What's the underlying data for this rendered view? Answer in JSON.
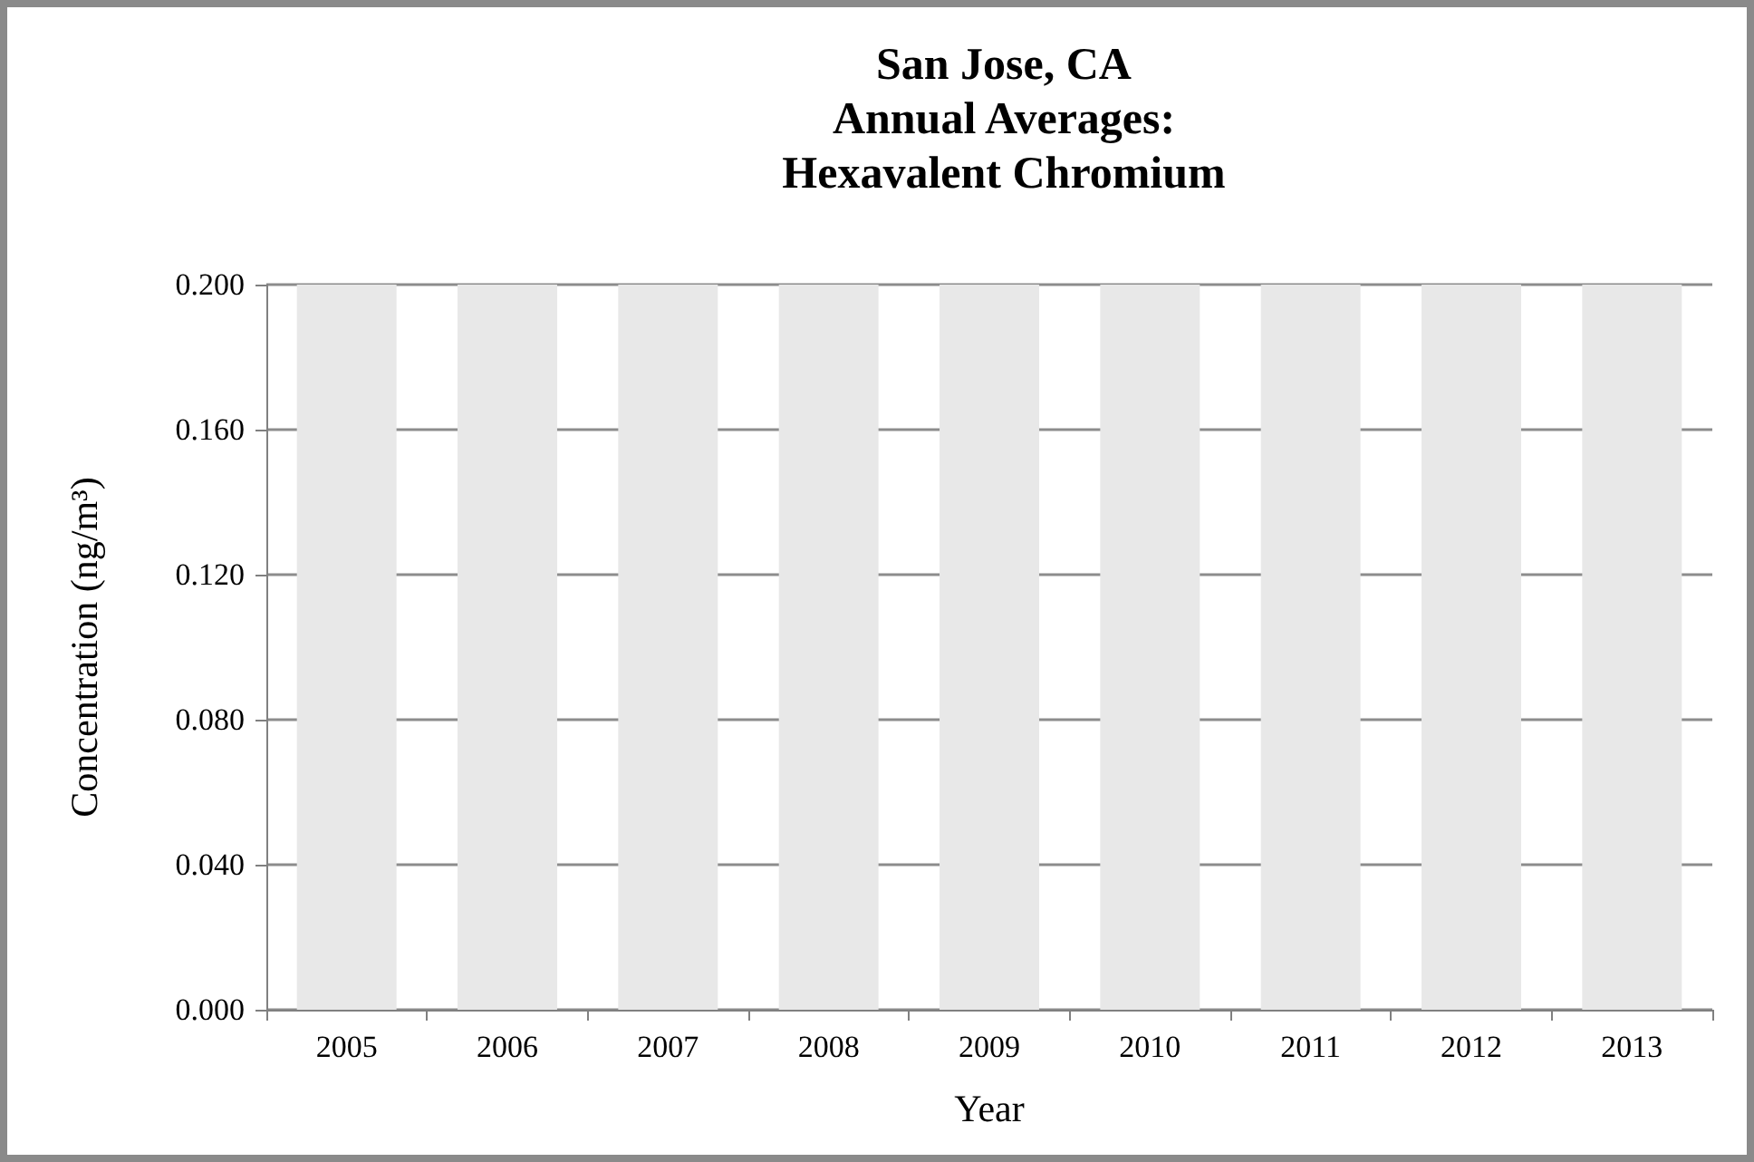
{
  "chart_data": {
    "type": "bar",
    "title": "San Jose, CA\nAnnual Averages:\nHexavalent Chromium",
    "xlabel": "Year",
    "ylabel": "Concentration (ng/m³)",
    "categories": [
      "2005",
      "2006",
      "2007",
      "2008",
      "2009",
      "2010",
      "2011",
      "2012",
      "2013"
    ],
    "values": [
      0.2,
      0.2,
      0.2,
      0.2,
      0.2,
      0.2,
      0.2,
      0.2,
      0.2
    ],
    "color": "#e8e8e8",
    "ylim": [
      0,
      0.2
    ],
    "yticks": [
      {
        "value": 0,
        "label": "0.000"
      },
      {
        "value": 0.04,
        "label": "0.040"
      },
      {
        "value": 0.08,
        "label": "0.080"
      },
      {
        "value": 0.12,
        "label": "0.120"
      },
      {
        "value": 0.16,
        "label": "0.160"
      },
      {
        "value": 0.2,
        "label": "0.200"
      }
    ],
    "grid": "y"
  }
}
